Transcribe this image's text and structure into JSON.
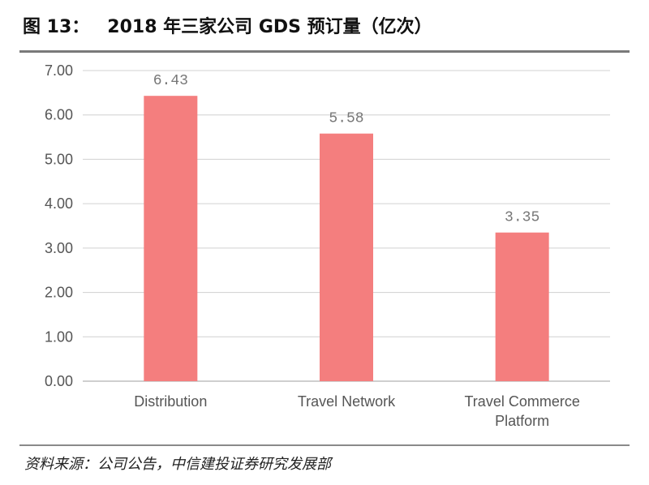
{
  "title": {
    "figure_no": "图 13：",
    "text": "2018 年三家公司 GDS 预订量（亿次）"
  },
  "source": "资料来源：公司公告，中信建投证券研究发展部",
  "chart_data": {
    "type": "bar",
    "categories": [
      [
        "Distribution"
      ],
      [
        "Travel Network"
      ],
      [
        "Travel Commerce",
        "Platform"
      ]
    ],
    "values": [
      6.43,
      5.58,
      3.35
    ],
    "data_labels": [
      "6.43",
      "5.58",
      "3.35"
    ],
    "y_ticks": [
      "0.00",
      "1.00",
      "2.00",
      "3.00",
      "4.00",
      "5.00",
      "6.00",
      "7.00"
    ],
    "ylim": [
      0,
      7
    ],
    "grid": true,
    "legend": "none",
    "colors": {
      "bar": "#f47e7e",
      "grid": "#d0d0d0",
      "axis": "#bfbfbf"
    }
  }
}
